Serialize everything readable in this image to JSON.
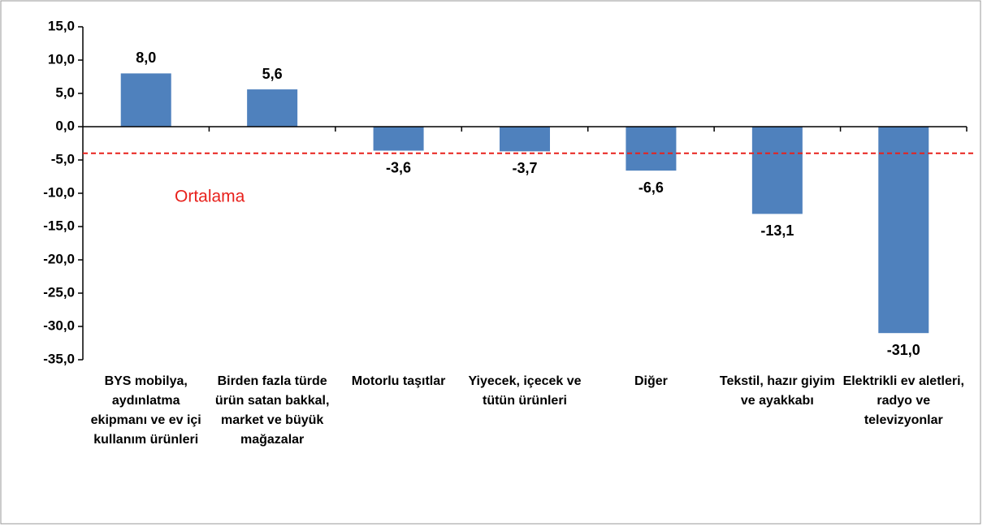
{
  "chart_data": {
    "type": "bar",
    "categories": [
      "BYS mobilya, aydınlatma ekipmanı ve ev içi kullanım ürünleri",
      "Birden fazla türde ürün satan bakkal, market ve büyük mağazalar",
      "Motorlu taşıtlar",
      "Yiyecek, içecek ve tütün ürünleri",
      "Diğer",
      "Tekstil, hazır giyim ve ayakkabı",
      "Elektrikli ev aletleri, radyo ve televizyonlar"
    ],
    "values": [
      8.0,
      5.6,
      -3.6,
      -3.7,
      -6.6,
      -13.1,
      -31.0
    ],
    "value_labels": [
      "8,0",
      "5,6",
      "-3,6",
      "-3,7",
      "-6,6",
      "-13,1",
      "-31,0"
    ],
    "color": "#4f81bd",
    "ylim": [
      -35,
      15
    ],
    "yticks": [
      {
        "value": 15,
        "label": "15,0"
      },
      {
        "value": 10,
        "label": "10,0"
      },
      {
        "value": 5,
        "label": "5,0"
      },
      {
        "value": 0,
        "label": "0,0"
      },
      {
        "value": -5,
        "label": "-5,0"
      },
      {
        "value": -10,
        "label": "-10,0"
      },
      {
        "value": -15,
        "label": "-15,0"
      },
      {
        "value": -20,
        "label": "-20,0"
      },
      {
        "value": -25,
        "label": "-25,0"
      },
      {
        "value": -30,
        "label": "-30,0"
      },
      {
        "value": -35,
        "label": "-35,0"
      }
    ],
    "average": {
      "value": -4.0,
      "label": "Ortalama",
      "color": "#e8211c"
    }
  }
}
